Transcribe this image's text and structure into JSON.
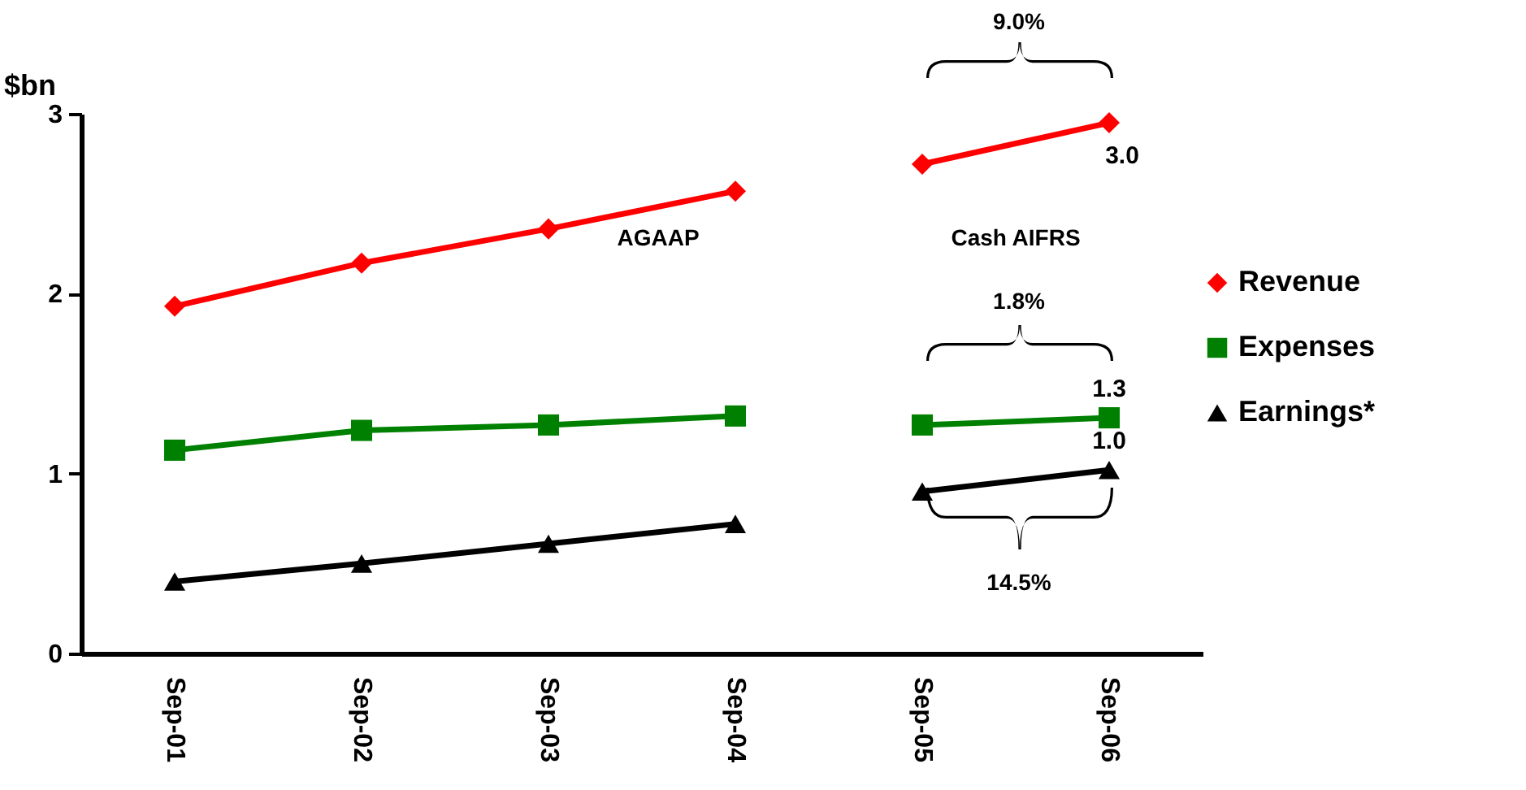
{
  "chart_data": {
    "type": "line",
    "ylabel": "$bn",
    "categories": [
      "Sep-01",
      "Sep-02",
      "Sep-03",
      "Sep-04",
      "Sep-05",
      "Sep-06"
    ],
    "ylim": [
      0,
      3
    ],
    "yticks": [
      0,
      1,
      2,
      3
    ],
    "grid": false,
    "legend": "right",
    "line_style": "solid",
    "series": [
      {
        "name": "Revenue",
        "color": "#ff0000",
        "marker": "diamond",
        "values": [
          1.93,
          2.17,
          2.36,
          2.57,
          null,
          null
        ]
      },
      {
        "color": "#ff0000",
        "marker": "diamond",
        "values": [
          null,
          null,
          null,
          null,
          2.72,
          2.95
        ],
        "value_labels": [
          null,
          null,
          null,
          null,
          null,
          "3.0"
        ]
      },
      {
        "name": "Expenses",
        "color": "#008000",
        "marker": "square",
        "values": [
          1.13,
          1.24,
          1.27,
          1.32,
          null,
          null
        ]
      },
      {
        "color": "#008000",
        "marker": "square",
        "values": [
          null,
          null,
          null,
          null,
          1.27,
          1.31
        ],
        "value_labels": [
          null,
          null,
          null,
          null,
          null,
          "1.3"
        ]
      },
      {
        "name": "Earnings*",
        "color": "#000000",
        "marker": "triangle",
        "values": [
          0.4,
          0.5,
          0.61,
          0.72,
          null,
          null
        ]
      },
      {
        "color": "#000000",
        "marker": "triangle",
        "values": [
          null,
          null,
          null,
          null,
          0.9,
          1.02
        ],
        "value_labels": [
          null,
          null,
          null,
          null,
          null,
          "1.0"
        ]
      }
    ],
    "annotations": [
      "AGAAP",
      "Cash AIFRS",
      "9.0%",
      "1.8%",
      "14.5%"
    ]
  }
}
